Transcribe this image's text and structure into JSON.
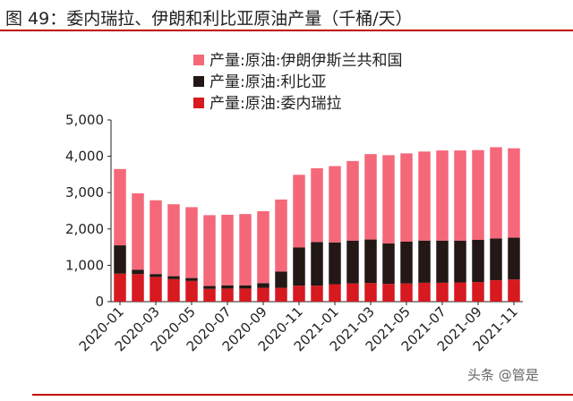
{
  "title": "图 49：委内瑞拉、伊朗和利比亚原油产量（千桶/天）",
  "watermark": "头条 @管是",
  "colors": {
    "iran": "#f4687a",
    "libya": "#231815",
    "venezuela": "#d71920",
    "rule": "#c00000"
  },
  "chart_data": {
    "type": "bar",
    "stacked": true,
    "title": "",
    "xlabel": "",
    "ylabel": "",
    "ylim": [
      0,
      5000
    ],
    "yticks": [
      "0",
      "1,000",
      "2,000",
      "3,000",
      "4,000",
      "5,000"
    ],
    "grid": false,
    "legend_position": "top-left",
    "categories": [
      "2020-01",
      "2020-02",
      "2020-03",
      "2020-04",
      "2020-05",
      "2020-06",
      "2020-07",
      "2020-08",
      "2020-09",
      "2020-10",
      "2020-11",
      "2020-12",
      "2021-01",
      "2021-02",
      "2021-03",
      "2021-04",
      "2021-05",
      "2021-06",
      "2021-07",
      "2021-08",
      "2021-09",
      "2021-10",
      "2021-11"
    ],
    "xtick_labels": [
      "2020-01",
      "2020-03",
      "2020-05",
      "2020-07",
      "2020-09",
      "2020-11",
      "2021-01",
      "2021-03",
      "2021-05",
      "2021-07",
      "2021-09",
      "2021-11"
    ],
    "series": [
      {
        "name": "产量:原油:委内瑞拉",
        "color_key": "venezuela",
        "values": [
          770,
          760,
          680,
          620,
          570,
          350,
          360,
          360,
          380,
          380,
          440,
          440,
          480,
          500,
          510,
          490,
          500,
          520,
          520,
          530,
          540,
          590,
          610
        ]
      },
      {
        "name": "产量:原油:利比亚",
        "color_key": "libya",
        "values": [
          780,
          120,
          80,
          80,
          80,
          80,
          90,
          90,
          130,
          450,
          1050,
          1200,
          1150,
          1180,
          1200,
          1110,
          1150,
          1160,
          1160,
          1150,
          1160,
          1150,
          1150
        ]
      },
      {
        "name": "产量:原油:伊朗伊斯兰共和国",
        "color_key": "iran",
        "values": [
          2100,
          2100,
          2030,
          1980,
          1950,
          1950,
          1940,
          1960,
          1980,
          1980,
          2000,
          2030,
          2100,
          2190,
          2350,
          2430,
          2430,
          2450,
          2480,
          2480,
          2470,
          2510,
          2460
        ]
      }
    ],
    "legend_order": [
      "产量:原油:伊朗伊斯兰共和国",
      "产量:原油:利比亚",
      "产量:原油:委内瑞拉"
    ]
  }
}
